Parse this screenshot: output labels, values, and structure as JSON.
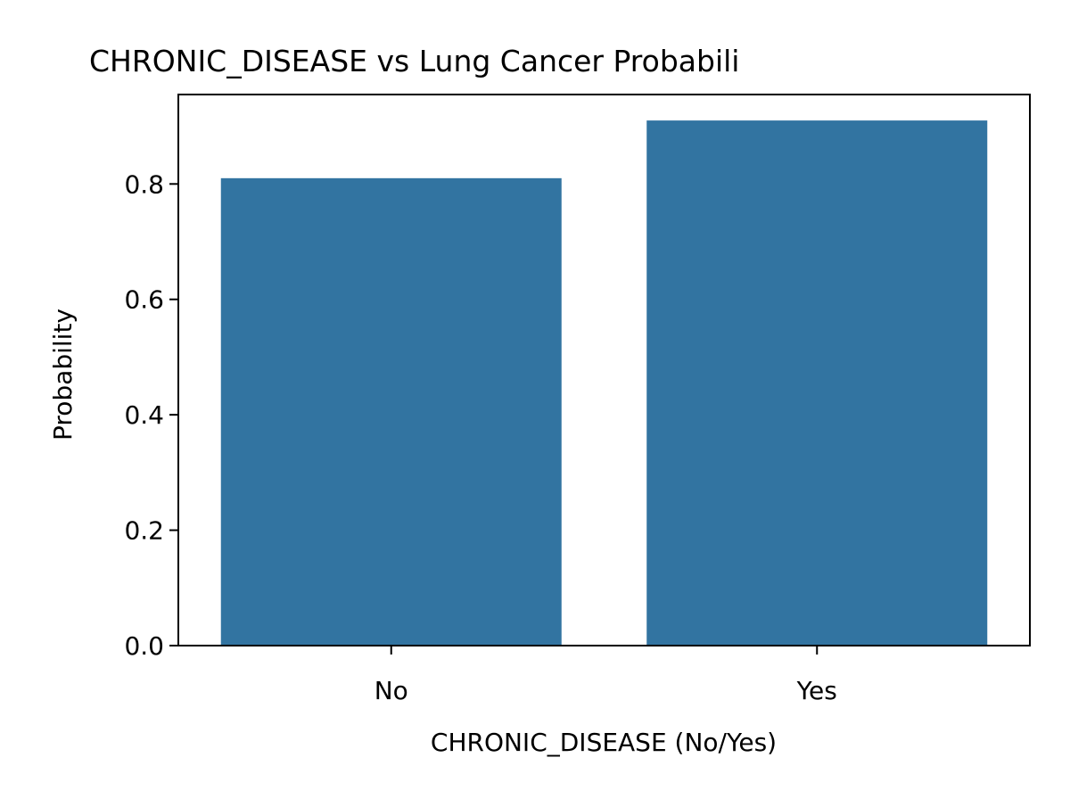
{
  "chart_data": {
    "type": "bar",
    "title": "CHRONIC_DISEASE vs Lung Cancer Probabili",
    "xlabel": "CHRONIC_DISEASE (No/Yes)",
    "ylabel": "Probability",
    "categories": [
      "No",
      "Yes"
    ],
    "values": [
      0.81,
      0.91
    ],
    "ylim": [
      0,
      0.955
    ],
    "yticks": [
      0.0,
      0.2,
      0.4,
      0.6,
      0.8
    ],
    "ytick_labels": [
      "0.0",
      "0.2",
      "0.4",
      "0.6",
      "0.8"
    ],
    "grid": false,
    "legend": "none",
    "bar_color": "#3274a1"
  }
}
